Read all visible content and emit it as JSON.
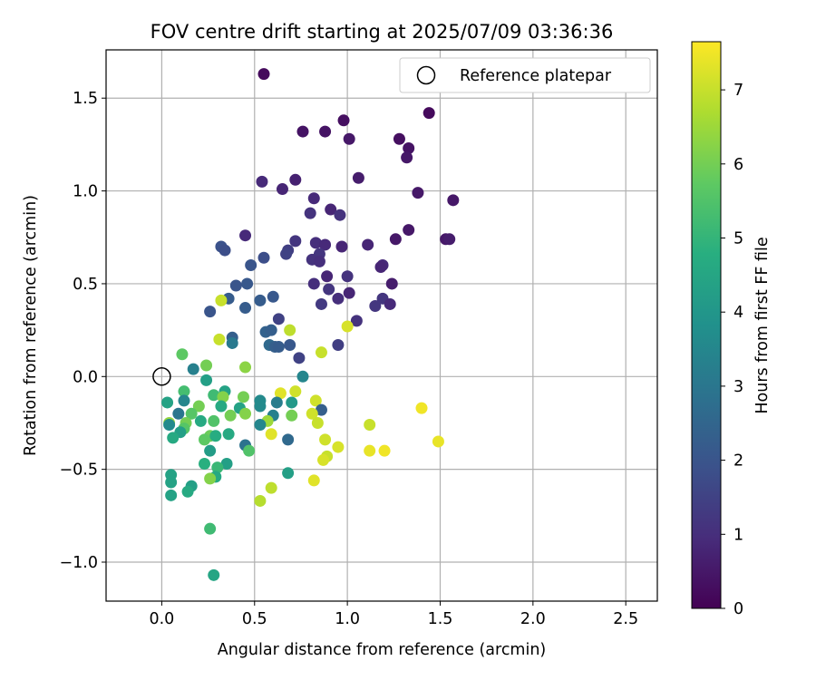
{
  "chart_data": {
    "type": "scatter",
    "title": "FOV centre drift starting at 2025/07/09 03:36:36",
    "xlabel": "Angular distance from reference (arcmin)",
    "ylabel": "Rotation from reference (arcmin)",
    "xlim": [
      -0.3,
      2.67
    ],
    "ylim": [
      -1.21,
      1.76
    ],
    "xticks": [
      0.0,
      0.5,
      1.0,
      1.5,
      2.0,
      2.5
    ],
    "xtick_labels": [
      "0.0",
      "0.5",
      "1.0",
      "1.5",
      "2.0",
      "2.5"
    ],
    "yticks": [
      -1.0,
      -0.5,
      0.0,
      0.5,
      1.0,
      1.5
    ],
    "ytick_labels": [
      "−1.0",
      "−0.5",
      "0.0",
      "0.5",
      "1.0",
      "1.5"
    ],
    "grid": true,
    "legend": {
      "placement": "top-right",
      "entries": [
        {
          "label": "Reference platepar",
          "marker": "open-circle"
        }
      ]
    },
    "reference_point": {
      "x": 0.0,
      "y": 0.0
    },
    "colorbar": {
      "label": "Hours from first FF file",
      "colormap": "viridis",
      "range": [
        0,
        7.65
      ],
      "ticks": [
        0,
        1,
        2,
        3,
        4,
        5,
        6,
        7
      ],
      "tick_labels": [
        "0",
        "1",
        "2",
        "3",
        "4",
        "5",
        "6",
        "7"
      ]
    },
    "points": [
      {
        "x": 0.55,
        "y": 1.63,
        "h": 0.2
      },
      {
        "x": 1.44,
        "y": 1.42,
        "h": 0.2
      },
      {
        "x": 0.98,
        "y": 1.38,
        "h": 0.3
      },
      {
        "x": 0.76,
        "y": 1.32,
        "h": 0.4
      },
      {
        "x": 0.88,
        "y": 1.32,
        "h": 0.4
      },
      {
        "x": 1.01,
        "y": 1.28,
        "h": 0.5
      },
      {
        "x": 1.28,
        "y": 1.28,
        "h": 0.3
      },
      {
        "x": 1.33,
        "y": 1.23,
        "h": 0.4
      },
      {
        "x": 1.32,
        "y": 1.18,
        "h": 0.5
      },
      {
        "x": 1.06,
        "y": 1.07,
        "h": 0.6
      },
      {
        "x": 0.72,
        "y": 1.06,
        "h": 0.7
      },
      {
        "x": 0.54,
        "y": 1.05,
        "h": 0.9
      },
      {
        "x": 0.65,
        "y": 1.01,
        "h": 0.8
      },
      {
        "x": 1.38,
        "y": 0.99,
        "h": 0.5
      },
      {
        "x": 1.57,
        "y": 0.95,
        "h": 0.5
      },
      {
        "x": 0.82,
        "y": 0.96,
        "h": 0.9
      },
      {
        "x": 0.91,
        "y": 0.9,
        "h": 0.8
      },
      {
        "x": 0.8,
        "y": 0.88,
        "h": 1.1
      },
      {
        "x": 0.96,
        "y": 0.87,
        "h": 1.1
      },
      {
        "x": 1.33,
        "y": 0.79,
        "h": 0.5
      },
      {
        "x": 1.26,
        "y": 0.74,
        "h": 0.5
      },
      {
        "x": 1.53,
        "y": 0.74,
        "h": 0.5
      },
      {
        "x": 1.55,
        "y": 0.74,
        "h": 0.6
      },
      {
        "x": 0.45,
        "y": 0.76,
        "h": 0.9
      },
      {
        "x": 0.72,
        "y": 0.73,
        "h": 1.2
      },
      {
        "x": 0.83,
        "y": 0.72,
        "h": 1.0
      },
      {
        "x": 0.88,
        "y": 0.71,
        "h": 0.9
      },
      {
        "x": 0.97,
        "y": 0.7,
        "h": 0.8
      },
      {
        "x": 1.11,
        "y": 0.71,
        "h": 0.8
      },
      {
        "x": 0.32,
        "y": 0.7,
        "h": 1.9
      },
      {
        "x": 0.34,
        "y": 0.68,
        "h": 1.8
      },
      {
        "x": 0.68,
        "y": 0.68,
        "h": 1.4
      },
      {
        "x": 0.67,
        "y": 0.66,
        "h": 1.5
      },
      {
        "x": 0.55,
        "y": 0.64,
        "h": 1.8
      },
      {
        "x": 0.85,
        "y": 0.66,
        "h": 1.2
      },
      {
        "x": 0.81,
        "y": 0.63,
        "h": 1.1
      },
      {
        "x": 0.85,
        "y": 0.62,
        "h": 1.0
      },
      {
        "x": 0.48,
        "y": 0.6,
        "h": 2.0
      },
      {
        "x": 1.19,
        "y": 0.6,
        "h": 0.9
      },
      {
        "x": 1.18,
        "y": 0.59,
        "h": 0.8
      },
      {
        "x": 0.89,
        "y": 0.54,
        "h": 0.8
      },
      {
        "x": 1.0,
        "y": 0.54,
        "h": 1.1
      },
      {
        "x": 0.4,
        "y": 0.49,
        "h": 2.0
      },
      {
        "x": 0.46,
        "y": 0.5,
        "h": 2.1
      },
      {
        "x": 0.82,
        "y": 0.5,
        "h": 1.0
      },
      {
        "x": 1.24,
        "y": 0.5,
        "h": 0.6
      },
      {
        "x": 0.9,
        "y": 0.47,
        "h": 1.2
      },
      {
        "x": 1.01,
        "y": 0.45,
        "h": 0.8
      },
      {
        "x": 0.95,
        "y": 0.42,
        "h": 1.0
      },
      {
        "x": 1.19,
        "y": 0.42,
        "h": 1.2
      },
      {
        "x": 0.36,
        "y": 0.42,
        "h": 2.2
      },
      {
        "x": 0.53,
        "y": 0.41,
        "h": 2.2
      },
      {
        "x": 0.6,
        "y": 0.43,
        "h": 2.1
      },
      {
        "x": 0.86,
        "y": 0.39,
        "h": 1.3
      },
      {
        "x": 1.15,
        "y": 0.38,
        "h": 1.2
      },
      {
        "x": 1.23,
        "y": 0.39,
        "h": 0.9
      },
      {
        "x": 0.32,
        "y": 0.41,
        "h": 7.0
      },
      {
        "x": 0.26,
        "y": 0.35,
        "h": 2.0
      },
      {
        "x": 0.45,
        "y": 0.37,
        "h": 2.2
      },
      {
        "x": 0.63,
        "y": 0.31,
        "h": 1.5
      },
      {
        "x": 1.05,
        "y": 0.3,
        "h": 1.1
      },
      {
        "x": 1.0,
        "y": 0.27,
        "h": 7.2
      },
      {
        "x": 0.56,
        "y": 0.24,
        "h": 2.4
      },
      {
        "x": 0.59,
        "y": 0.25,
        "h": 2.3
      },
      {
        "x": 0.69,
        "y": 0.25,
        "h": 6.9
      },
      {
        "x": 0.38,
        "y": 0.21,
        "h": 2.3
      },
      {
        "x": 0.31,
        "y": 0.2,
        "h": 7.0
      },
      {
        "x": 0.38,
        "y": 0.18,
        "h": 3.1
      },
      {
        "x": 0.58,
        "y": 0.17,
        "h": 2.6
      },
      {
        "x": 0.61,
        "y": 0.16,
        "h": 2.3
      },
      {
        "x": 0.63,
        "y": 0.16,
        "h": 2.2
      },
      {
        "x": 0.69,
        "y": 0.17,
        "h": 2.1
      },
      {
        "x": 0.95,
        "y": 0.17,
        "h": 1.4
      },
      {
        "x": 0.86,
        "y": 0.13,
        "h": 7.0
      },
      {
        "x": 0.11,
        "y": 0.12,
        "h": 5.7
      },
      {
        "x": 0.74,
        "y": 0.1,
        "h": 1.5
      },
      {
        "x": 0.17,
        "y": 0.04,
        "h": 3.3
      },
      {
        "x": 0.24,
        "y": 0.06,
        "h": 6.0
      },
      {
        "x": 0.45,
        "y": 0.05,
        "h": 6.3
      },
      {
        "x": 0.76,
        "y": 0.0,
        "h": 3.5
      },
      {
        "x": 0.24,
        "y": -0.02,
        "h": 4.3
      },
      {
        "x": 0.12,
        "y": -0.08,
        "h": 5.3
      },
      {
        "x": 0.34,
        "y": -0.08,
        "h": 4.4
      },
      {
        "x": 0.72,
        "y": -0.08,
        "h": 7.1
      },
      {
        "x": 0.64,
        "y": -0.09,
        "h": 7.3
      },
      {
        "x": 0.28,
        "y": -0.1,
        "h": 5.2
      },
      {
        "x": 0.44,
        "y": -0.11,
        "h": 6.0
      },
      {
        "x": 0.33,
        "y": -0.11,
        "h": 6.2
      },
      {
        "x": 0.03,
        "y": -0.14,
        "h": 4.4
      },
      {
        "x": 0.12,
        "y": -0.13,
        "h": 3.5
      },
      {
        "x": 0.53,
        "y": -0.13,
        "h": 3.6
      },
      {
        "x": 0.62,
        "y": -0.14,
        "h": 3.2
      },
      {
        "x": 0.7,
        "y": -0.14,
        "h": 4.1
      },
      {
        "x": 0.83,
        "y": -0.13,
        "h": 7.1
      },
      {
        "x": 0.2,
        "y": -0.16,
        "h": 6.0
      },
      {
        "x": 0.32,
        "y": -0.16,
        "h": 4.6
      },
      {
        "x": 0.53,
        "y": -0.16,
        "h": 3.6
      },
      {
        "x": 0.42,
        "y": -0.17,
        "h": 4.4
      },
      {
        "x": 0.86,
        "y": -0.18,
        "h": 2.3
      },
      {
        "x": 0.09,
        "y": -0.2,
        "h": 3.0
      },
      {
        "x": 0.16,
        "y": -0.2,
        "h": 5.6
      },
      {
        "x": 0.37,
        "y": -0.21,
        "h": 6.0
      },
      {
        "x": 0.45,
        "y": -0.2,
        "h": 6.2
      },
      {
        "x": 0.6,
        "y": -0.21,
        "h": 3.3
      },
      {
        "x": 0.7,
        "y": -0.21,
        "h": 6.0
      },
      {
        "x": 0.81,
        "y": -0.2,
        "h": 7.1
      },
      {
        "x": 0.21,
        "y": -0.24,
        "h": 4.6
      },
      {
        "x": 0.28,
        "y": -0.24,
        "h": 5.5
      },
      {
        "x": 0.57,
        "y": -0.24,
        "h": 6.5
      },
      {
        "x": 0.84,
        "y": -0.25,
        "h": 7.0
      },
      {
        "x": 0.04,
        "y": -0.25,
        "h": 6.4
      },
      {
        "x": 0.13,
        "y": -0.25,
        "h": 6.0
      },
      {
        "x": 0.53,
        "y": -0.26,
        "h": 3.5
      },
      {
        "x": 1.12,
        "y": -0.26,
        "h": 7.0
      },
      {
        "x": 0.12,
        "y": -0.28,
        "h": 5.6
      },
      {
        "x": 0.04,
        "y": -0.26,
        "h": 3.6
      },
      {
        "x": 0.1,
        "y": -0.3,
        "h": 4.3
      },
      {
        "x": 0.26,
        "y": -0.32,
        "h": 5.9
      },
      {
        "x": 0.36,
        "y": -0.31,
        "h": 4.6
      },
      {
        "x": 0.59,
        "y": -0.31,
        "h": 7.3
      },
      {
        "x": 0.06,
        "y": -0.33,
        "h": 4.6
      },
      {
        "x": 0.23,
        "y": -0.34,
        "h": 5.7
      },
      {
        "x": 0.29,
        "y": -0.32,
        "h": 4.7
      },
      {
        "x": 0.68,
        "y": -0.34,
        "h": 2.6
      },
      {
        "x": 0.88,
        "y": -0.34,
        "h": 7.1
      },
      {
        "x": 0.45,
        "y": -0.37,
        "h": 2.9
      },
      {
        "x": 0.95,
        "y": -0.38,
        "h": 7.2
      },
      {
        "x": 0.26,
        "y": -0.4,
        "h": 4.2
      },
      {
        "x": 0.47,
        "y": -0.4,
        "h": 5.5
      },
      {
        "x": 1.12,
        "y": -0.4,
        "h": 7.4
      },
      {
        "x": 1.2,
        "y": -0.4,
        "h": 7.5
      },
      {
        "x": 0.89,
        "y": -0.43,
        "h": 7.0
      },
      {
        "x": 0.87,
        "y": -0.45,
        "h": 7.2
      },
      {
        "x": 0.23,
        "y": -0.47,
        "h": 4.8
      },
      {
        "x": 0.35,
        "y": -0.47,
        "h": 4.3
      },
      {
        "x": 0.3,
        "y": -0.49,
        "h": 5.1
      },
      {
        "x": 0.68,
        "y": -0.52,
        "h": 4.3
      },
      {
        "x": 0.05,
        "y": -0.53,
        "h": 4.4
      },
      {
        "x": 0.29,
        "y": -0.54,
        "h": 4.6
      },
      {
        "x": 0.26,
        "y": -0.55,
        "h": 6.2
      },
      {
        "x": 0.82,
        "y": -0.56,
        "h": 7.3
      },
      {
        "x": 0.05,
        "y": -0.57,
        "h": 4.4
      },
      {
        "x": 0.16,
        "y": -0.59,
        "h": 4.3
      },
      {
        "x": 0.59,
        "y": -0.6,
        "h": 6.9
      },
      {
        "x": 0.14,
        "y": -0.62,
        "h": 4.6
      },
      {
        "x": 0.05,
        "y": -0.64,
        "h": 4.4
      },
      {
        "x": 0.53,
        "y": -0.67,
        "h": 6.8
      },
      {
        "x": 0.26,
        "y": -0.82,
        "h": 5.2
      },
      {
        "x": 0.28,
        "y": -1.07,
        "h": 4.5
      },
      {
        "x": 1.4,
        "y": -0.17,
        "h": 7.5
      },
      {
        "x": 1.49,
        "y": -0.35,
        "h": 7.4
      }
    ]
  }
}
